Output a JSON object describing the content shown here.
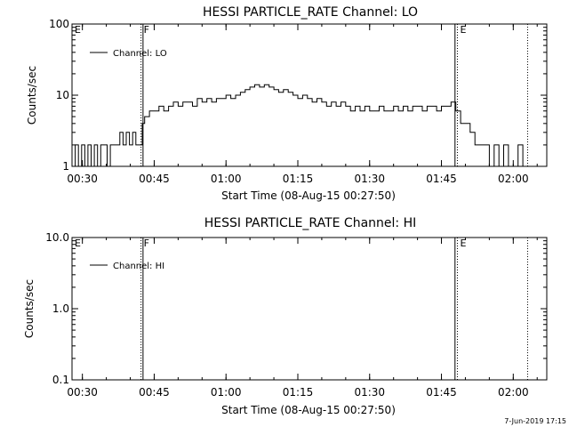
{
  "footer": {
    "date_stamp": "7-Jun-2019 17:15"
  },
  "chart_data": [
    {
      "type": "line",
      "title": "HESSI PARTICLE_RATE Channel: LO",
      "xlabel": "Start Time (08-Aug-15 00:27:50)",
      "ylabel": "Counts/sec",
      "yscale": "log",
      "ylim": [
        1,
        100
      ],
      "xlim_minutes": [
        "00:27:50",
        "02:07:00"
      ],
      "xticks": [
        "00:30",
        "00:45",
        "01:00",
        "01:15",
        "01:30",
        "01:45",
        "02:00"
      ],
      "yticks": [
        "1",
        "10",
        "100"
      ],
      "legend": {
        "entries": [
          "Channel: LO"
        ],
        "position": "top-left"
      },
      "markers": [
        {
          "label": "E",
          "time": "00:27:50",
          "style": "dotted"
        },
        {
          "label": "F",
          "time": "00:42:15",
          "style": "dotted"
        },
        {
          "label": "",
          "time": "00:42:40",
          "style": "solid"
        },
        {
          "label": "",
          "time": "01:47:50",
          "style": "solid"
        },
        {
          "label": "E",
          "time": "01:48:20",
          "style": "dotted"
        },
        {
          "label": "",
          "time": "02:03:00",
          "style": "dotted"
        }
      ],
      "series": [
        {
          "name": "Channel: LO",
          "x": [
            "00:27:50",
            "00:28:30",
            "00:29:10",
            "00:29:50",
            "00:30:30",
            "00:31:10",
            "00:31:50",
            "00:32:30",
            "00:33:10",
            "00:33:50",
            "00:34:30",
            "00:35:10",
            "00:35:50",
            "00:36:30",
            "00:37:10",
            "00:37:50",
            "00:38:30",
            "00:39:10",
            "00:39:50",
            "00:40:30",
            "00:41:10",
            "00:41:50",
            "00:42:30",
            "00:43:00",
            "00:44:00",
            "00:45:00",
            "00:46:00",
            "00:47:00",
            "00:48:00",
            "00:49:00",
            "00:50:00",
            "00:51:00",
            "00:52:00",
            "00:53:00",
            "00:54:00",
            "00:55:00",
            "00:56:00",
            "00:57:00",
            "00:58:00",
            "00:59:00",
            "01:00:00",
            "01:01:00",
            "01:02:00",
            "01:03:00",
            "01:04:00",
            "01:05:00",
            "01:06:00",
            "01:07:00",
            "01:08:00",
            "01:09:00",
            "01:10:00",
            "01:11:00",
            "01:12:00",
            "01:13:00",
            "01:14:00",
            "01:15:00",
            "01:16:00",
            "01:17:00",
            "01:18:00",
            "01:19:00",
            "01:20:00",
            "01:21:00",
            "01:22:00",
            "01:23:00",
            "01:24:00",
            "01:25:00",
            "01:26:00",
            "01:27:00",
            "01:28:00",
            "01:29:00",
            "01:30:00",
            "01:31:00",
            "01:32:00",
            "01:33:00",
            "01:34:00",
            "01:35:00",
            "01:36:00",
            "01:37:00",
            "01:38:00",
            "01:39:00",
            "01:40:00",
            "01:41:00",
            "01:42:00",
            "01:43:00",
            "01:44:00",
            "01:45:00",
            "01:46:00",
            "01:47:00",
            "01:48:00",
            "01:49:00",
            "01:50:00",
            "01:51:00",
            "01:52:00",
            "01:53:00",
            "01:54:00",
            "01:55:00",
            "01:56:00",
            "01:57:00",
            "01:58:00",
            "01:59:00",
            "02:00:00",
            "02:01:00",
            "02:02:00",
            "02:03:00"
          ],
          "y": [
            1,
            2,
            1,
            2,
            1,
            2,
            1,
            2,
            1,
            2,
            2,
            1,
            2,
            2,
            2,
            3,
            2,
            3,
            2,
            3,
            2,
            2,
            4,
            5,
            6,
            6,
            7,
            6,
            7,
            8,
            7,
            8,
            8,
            7,
            9,
            8,
            9,
            8,
            9,
            9,
            10,
            9,
            10,
            11,
            12,
            13,
            14,
            13,
            14,
            13,
            12,
            11,
            12,
            11,
            10,
            9,
            10,
            9,
            8,
            9,
            8,
            7,
            8,
            7,
            8,
            7,
            6,
            7,
            6,
            7,
            6,
            6,
            7,
            6,
            6,
            7,
            6,
            7,
            6,
            7,
            7,
            6,
            7,
            7,
            6,
            7,
            7,
            8,
            6,
            4,
            4,
            3,
            2,
            2,
            2,
            1,
            2,
            1,
            2,
            1,
            1,
            2,
            1,
            1
          ]
        }
      ]
    },
    {
      "type": "line",
      "title": "HESSI PARTICLE_RATE Channel: HI",
      "xlabel": "Start Time (08-Aug-15 00:27:50)",
      "ylabel": "Counts/sec",
      "yscale": "log",
      "ylim": [
        0.1,
        10.0
      ],
      "xlim_minutes": [
        "00:27:50",
        "02:07:00"
      ],
      "xticks": [
        "00:30",
        "00:45",
        "01:00",
        "01:15",
        "01:30",
        "01:45",
        "02:00"
      ],
      "yticks": [
        "0.1",
        "1.0",
        "10.0"
      ],
      "legend": {
        "entries": [
          "Channel: HI"
        ],
        "position": "top-left"
      },
      "markers": [
        {
          "label": "E",
          "time": "00:27:50",
          "style": "dotted"
        },
        {
          "label": "F",
          "time": "00:42:15",
          "style": "dotted"
        },
        {
          "label": "",
          "time": "00:42:40",
          "style": "solid"
        },
        {
          "label": "",
          "time": "01:47:50",
          "style": "solid"
        },
        {
          "label": "E",
          "time": "01:48:20",
          "style": "dotted"
        },
        {
          "label": "",
          "time": "02:03:00",
          "style": "dotted"
        }
      ],
      "series": [
        {
          "name": "Channel: HI",
          "x": [],
          "y": []
        }
      ]
    }
  ]
}
